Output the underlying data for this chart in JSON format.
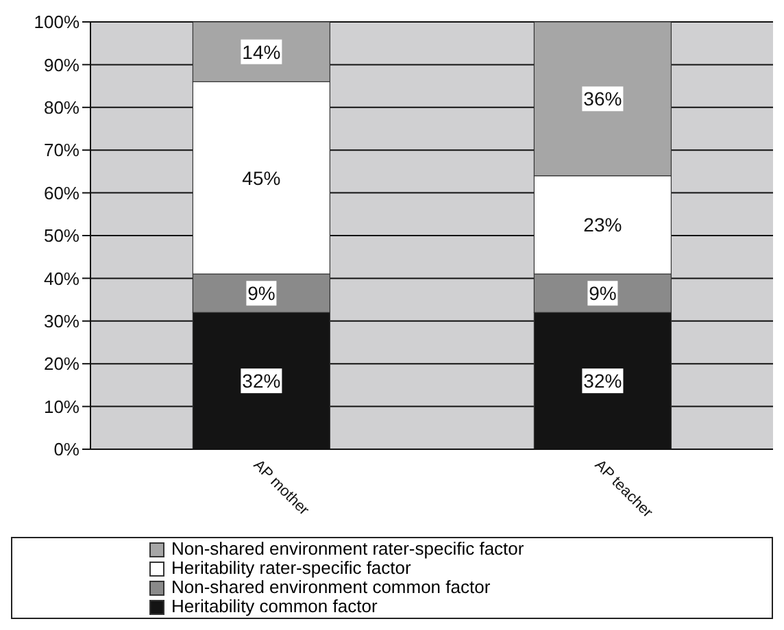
{
  "chart_data": {
    "type": "bar",
    "stacked": true,
    "categories": [
      "AP mother",
      "AP teacher"
    ],
    "series": [
      {
        "name": "Heritability common factor",
        "color": "#141414",
        "values": [
          32,
          32
        ],
        "value_labels": [
          "32%",
          "32%"
        ]
      },
      {
        "name": "Non-shared environment common factor",
        "color": "#8a8a8a",
        "values": [
          9,
          9
        ],
        "value_labels": [
          "9%",
          "9%"
        ]
      },
      {
        "name": "Heritability rater-specific factor",
        "color": "#ffffff",
        "values": [
          45,
          23
        ],
        "value_labels": [
          "45%",
          "23%"
        ]
      },
      {
        "name": "Non-shared environment rater-specific factor",
        "color": "#a6a6a6",
        "values": [
          14,
          36
        ],
        "value_labels": [
          "14%",
          "36%"
        ]
      }
    ],
    "ylim": [
      0,
      100
    ],
    "yticks": [
      {
        "value": 0,
        "label": "0%"
      },
      {
        "value": 10,
        "label": "10%"
      },
      {
        "value": 20,
        "label": "20%"
      },
      {
        "value": 30,
        "label": "30%"
      },
      {
        "value": 40,
        "label": "40%"
      },
      {
        "value": 50,
        "label": "50%"
      },
      {
        "value": 60,
        "label": "60%"
      },
      {
        "value": 70,
        "label": "70%"
      },
      {
        "value": 80,
        "label": "80%"
      },
      {
        "value": 90,
        "label": "90%"
      },
      {
        "value": 100,
        "label": "100%"
      }
    ],
    "grid": "y",
    "legend": "bottom"
  }
}
